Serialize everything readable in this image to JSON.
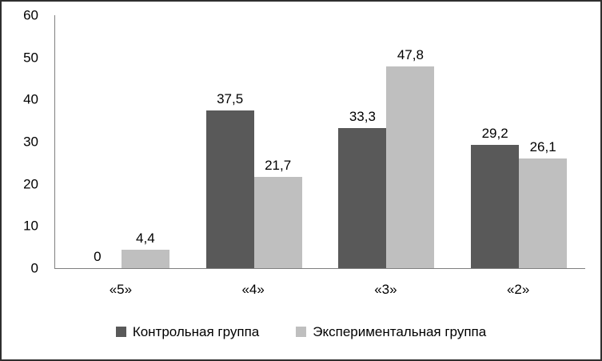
{
  "chart_data": {
    "type": "bar",
    "title": "",
    "xlabel": "",
    "ylabel": "",
    "categories": [
      "«5»",
      "«4»",
      "«3»",
      "«2»"
    ],
    "series": [
      {
        "name": "Контрольная группа",
        "color": "#595959",
        "values": [
          0,
          37.5,
          33.3,
          29.2
        ],
        "value_labels": [
          "0",
          "37,5",
          "33,3",
          "29,2"
        ]
      },
      {
        "name": "Экспериментальная группа",
        "color": "#bfbfbf",
        "values": [
          4.4,
          21.7,
          47.8,
          26.1
        ],
        "value_labels": [
          "4,4",
          "21,7",
          "47,8",
          "26,1"
        ]
      }
    ],
    "ylim": [
      0,
      60
    ],
    "yticks": [
      0,
      10,
      20,
      30,
      40,
      50,
      60
    ],
    "grid": false,
    "legend_position": "bottom",
    "axis_line_color": "#808080",
    "frame_border_color": "#2f2f2f",
    "plot_background": "#ffffff"
  }
}
